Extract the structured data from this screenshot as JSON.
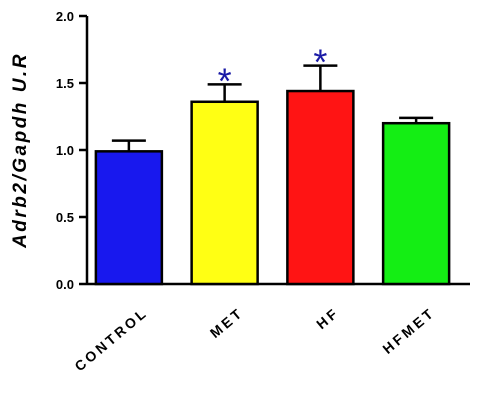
{
  "chart_data": {
    "type": "bar",
    "categories": [
      "CONTROL",
      "MET",
      "HF",
      "HFMET"
    ],
    "values": [
      0.99,
      1.36,
      1.44,
      1.2
    ],
    "error": [
      0.08,
      0.13,
      0.19,
      0.04
    ],
    "significant_marker": "*",
    "significant": [
      false,
      true,
      true,
      false
    ],
    "colors": [
      "#1818ee",
      "#ffff14",
      "#ff1414",
      "#14ee14"
    ],
    "marker_color": "#1a1aa6",
    "ylabel": "Adrb2/Gapdh U.R",
    "xlabel": "",
    "title": "",
    "ylim": [
      0,
      2.0
    ],
    "yticks": [
      "0.0",
      "0.5",
      "1.0",
      "1.5",
      "2.0"
    ],
    "grid": false,
    "legend": "none"
  }
}
